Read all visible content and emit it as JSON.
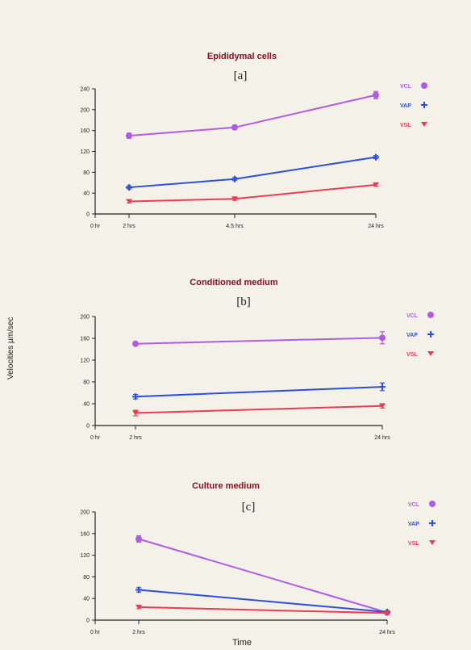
{
  "figure": {
    "ylabel": "Velocities µm/sec",
    "xlabel": "Time"
  },
  "colors": {
    "VCL": "#b05be6",
    "VAP": "#2a4fe0",
    "VSL": "#ee3a52",
    "title": "#8a1020"
  },
  "chart_data": [
    {
      "type": "line",
      "title": "Epididymal cells",
      "panel": "[a]",
      "x_ticks": [
        0,
        2,
        4.5,
        24
      ],
      "x_tick_labels": [
        "0 hr",
        "2 hrs",
        "4.5 hrs",
        "24 hrs"
      ],
      "x": [
        2,
        4.5,
        24
      ],
      "ylim": [
        0,
        240
      ],
      "y_ticks": [
        0,
        40,
        80,
        120,
        160,
        200,
        240
      ],
      "series": [
        {
          "name": "VCL",
          "marker": "circle",
          "values": [
            150,
            166,
            228
          ],
          "err": [
            5,
            4,
            7
          ]
        },
        {
          "name": "VAP",
          "marker": "plus",
          "values": [
            51,
            67,
            109
          ],
          "err": [
            3,
            3,
            3
          ]
        },
        {
          "name": "VSL",
          "marker": "triangle",
          "values": [
            24,
            29,
            56
          ],
          "err": [
            3,
            3,
            3
          ]
        }
      ]
    },
    {
      "type": "line",
      "title": "Conditioned medium",
      "panel": "[b]",
      "x_ticks": [
        0,
        2,
        24
      ],
      "x_tick_labels": [
        "0 hr",
        "2 hrs",
        "24 hrs"
      ],
      "x": [
        2,
        24
      ],
      "ylim": [
        0,
        200
      ],
      "y_ticks": [
        0,
        40,
        80,
        120,
        160,
        200
      ],
      "series": [
        {
          "name": "VCL",
          "marker": "circle",
          "values": [
            150,
            161
          ],
          "err": [
            3,
            11
          ]
        },
        {
          "name": "VAP",
          "marker": "plus",
          "values": [
            53,
            71
          ],
          "err": [
            4,
            7
          ]
        },
        {
          "name": "VSL",
          "marker": "triangle",
          "values": [
            23,
            36
          ],
          "err": [
            5,
            4
          ]
        }
      ]
    },
    {
      "type": "line",
      "title": "Culture medium",
      "panel": "[c]",
      "x_ticks": [
        0,
        2,
        24
      ],
      "x_tick_labels": [
        "0 hr",
        "2 hrs",
        "24 hrs"
      ],
      "x": [
        2,
        24
      ],
      "ylim": [
        0,
        200
      ],
      "y_ticks": [
        0,
        40,
        80,
        120,
        160,
        200
      ],
      "series": [
        {
          "name": "VCL",
          "marker": "circle",
          "values": [
            150,
            14
          ],
          "err": [
            6,
            2
          ]
        },
        {
          "name": "VAP",
          "marker": "plus",
          "values": [
            56,
            15
          ],
          "err": [
            4,
            2
          ]
        },
        {
          "name": "VSL",
          "marker": "triangle",
          "values": [
            24,
            13
          ],
          "err": [
            3,
            2
          ]
        }
      ]
    }
  ]
}
